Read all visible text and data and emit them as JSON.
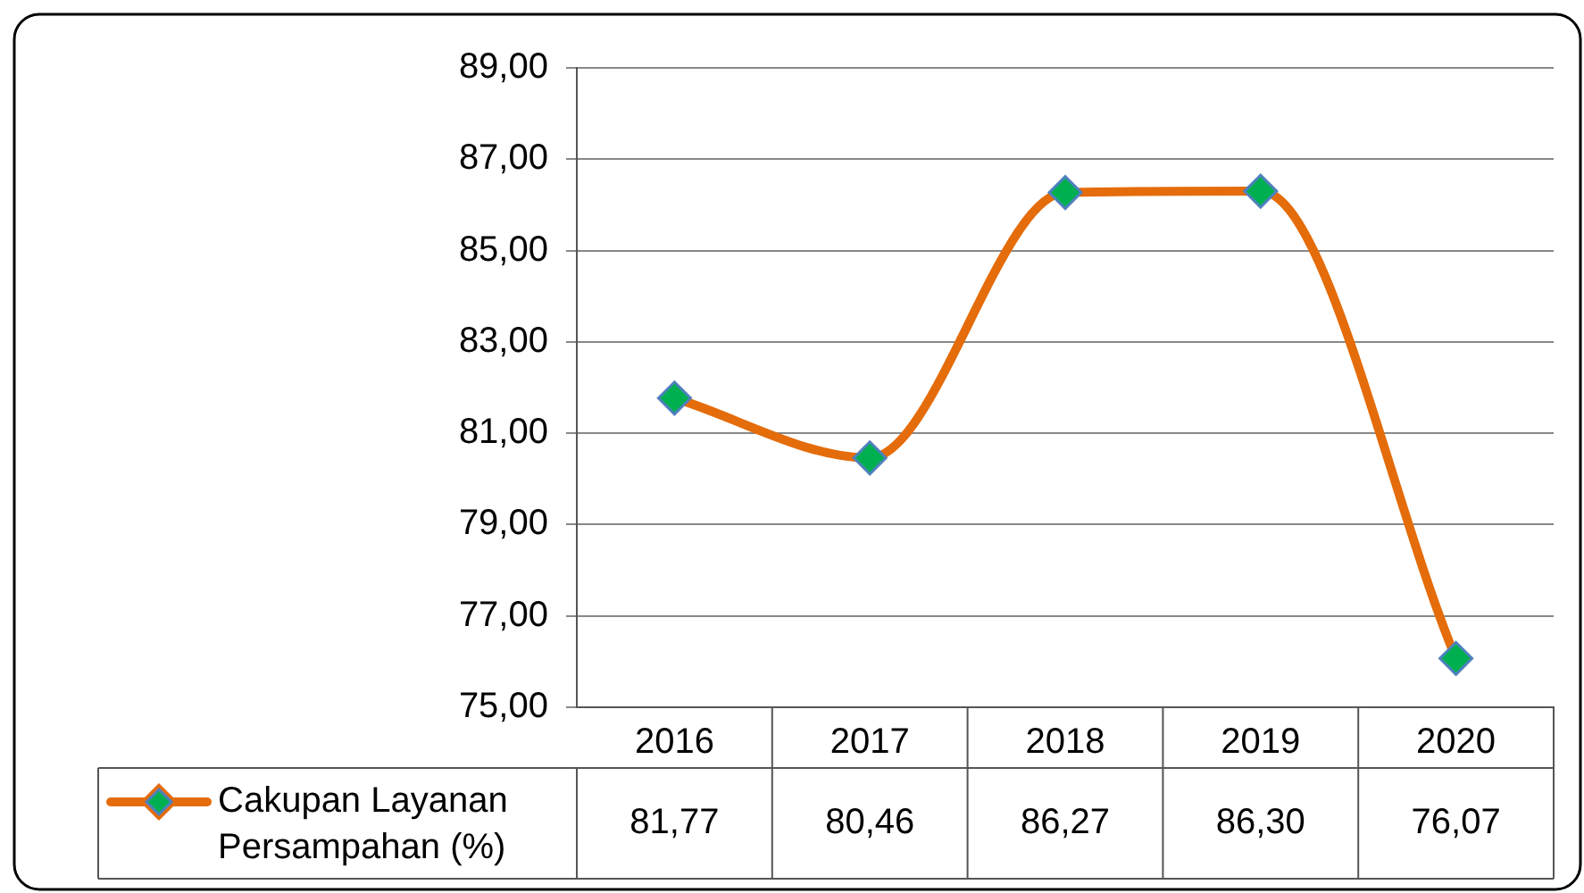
{
  "chart_data": {
    "type": "line",
    "categories": [
      "2016",
      "2017",
      "2018",
      "2019",
      "2020"
    ],
    "series": [
      {
        "name": "Cakupan Layanan Persampahan (%)",
        "color": "#e46c0a",
        "values": [
          81.77,
          80.46,
          86.27,
          86.3,
          76.07
        ],
        "value_labels": [
          "81,77",
          "80,46",
          "86,27",
          "86,30",
          "76,07"
        ]
      }
    ],
    "ylim": [
      75,
      89
    ],
    "yticks": [
      {
        "value": 75,
        "label": "75,00"
      },
      {
        "value": 77,
        "label": "77,00"
      },
      {
        "value": 79,
        "label": "79,00"
      },
      {
        "value": 81,
        "label": "81,00"
      },
      {
        "value": 83,
        "label": "83,00"
      },
      {
        "value": 85,
        "label": "85,00"
      },
      {
        "value": 87,
        "label": "87,00"
      },
      {
        "value": 89,
        "label": "89,00"
      }
    ],
    "grid": "y",
    "legend": "bottom left",
    "marker": "diamond",
    "line_style": "solid"
  }
}
